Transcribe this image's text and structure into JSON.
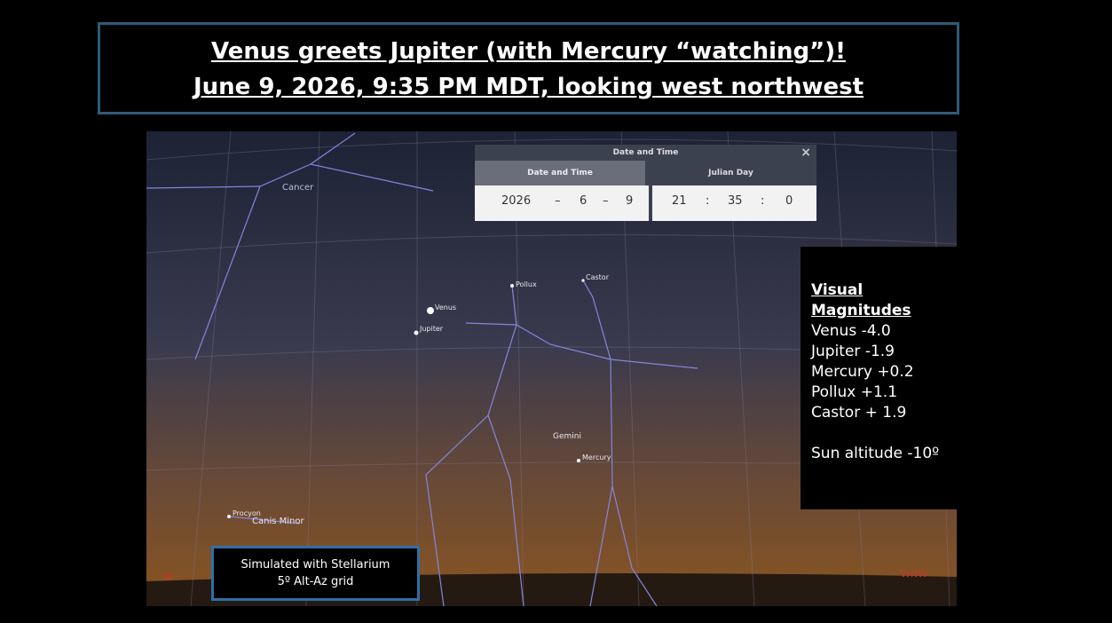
{
  "title": {
    "line1": "Venus greets Jupiter (with Mercury “watching”)!",
    "line2": "June 9, 2026, 9:35 PM MDT, looking west northwest"
  },
  "sky": {
    "labels": {
      "cancer": "Cancer",
      "pollux": "Pollux",
      "castor": "Castor",
      "venus": "Venus",
      "jupiter": "Jupiter",
      "gemini": "Gemini",
      "mercury": "Mercury",
      "procyon": "Procyon",
      "canis_minor": "Canis Minor",
      "west": "W",
      "wnw": "WNW"
    }
  },
  "dialog": {
    "title": "Date and Time",
    "close": "×",
    "tabs": [
      "Date and Time",
      "Julian Day"
    ],
    "date": [
      "2026",
      "6",
      "9"
    ],
    "date_separator": "–",
    "time": [
      "21",
      "35",
      "0"
    ],
    "time_separator": ":"
  },
  "magnitudes": {
    "heading": "Visual Magnitudes",
    "lines": [
      "Venus  -4.0",
      "Jupiter  -1.9",
      "Mercury +0.2",
      "Pollux +1.1",
      "Castor + 1.9"
    ],
    "sun": "Sun altitude  -10º"
  },
  "note": {
    "line1": "Simulated with Stellarium",
    "line2": "5º Alt-Az grid"
  }
}
